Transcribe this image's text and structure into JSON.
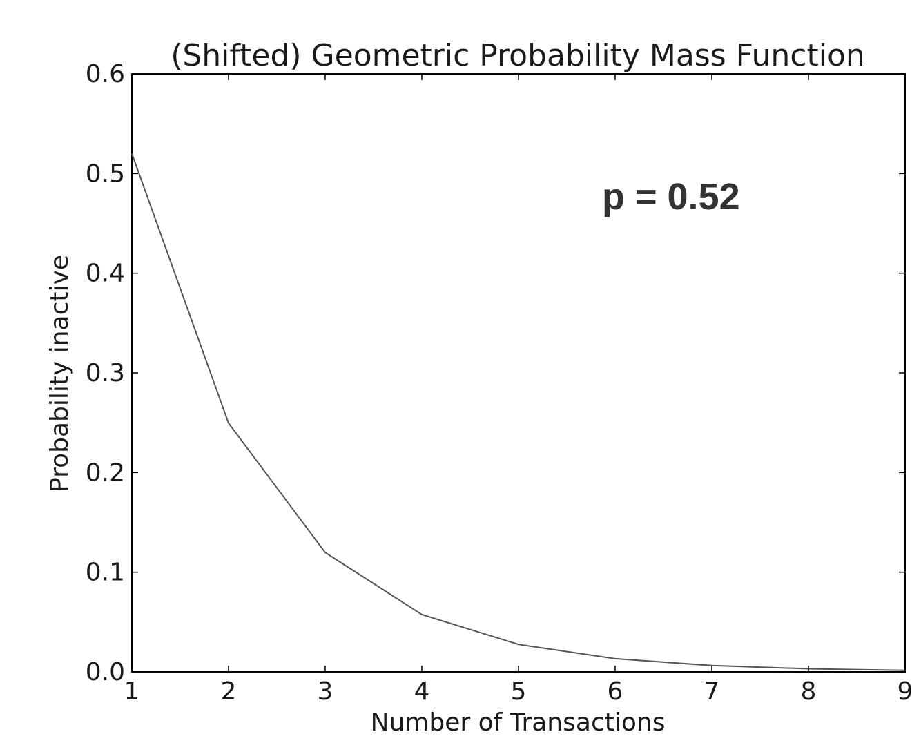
{
  "chart_data": {
    "type": "line",
    "title": "(Shifted) Geometric Probability Mass Function",
    "xlabel": "Number of Transactions",
    "ylabel": "Probability inactive",
    "annotation": "p = 0.52",
    "x": [
      1,
      2,
      3,
      4,
      5,
      6,
      7,
      8,
      9
    ],
    "xlim": [
      1,
      9
    ],
    "ylim": [
      0.0,
      0.6
    ],
    "xticks": [
      "1",
      "2",
      "3",
      "4",
      "5",
      "6",
      "7",
      "8",
      "9"
    ],
    "yticks": [
      "0.0",
      "0.1",
      "0.2",
      "0.3",
      "0.4",
      "0.5",
      "0.6"
    ],
    "series": [
      {
        "values": [
          0.52,
          0.2496,
          0.1198,
          0.0575,
          0.0276,
          0.0132,
          0.0064,
          0.0031,
          0.0015
        ]
      }
    ],
    "grid": false,
    "line_color": "#555555"
  }
}
